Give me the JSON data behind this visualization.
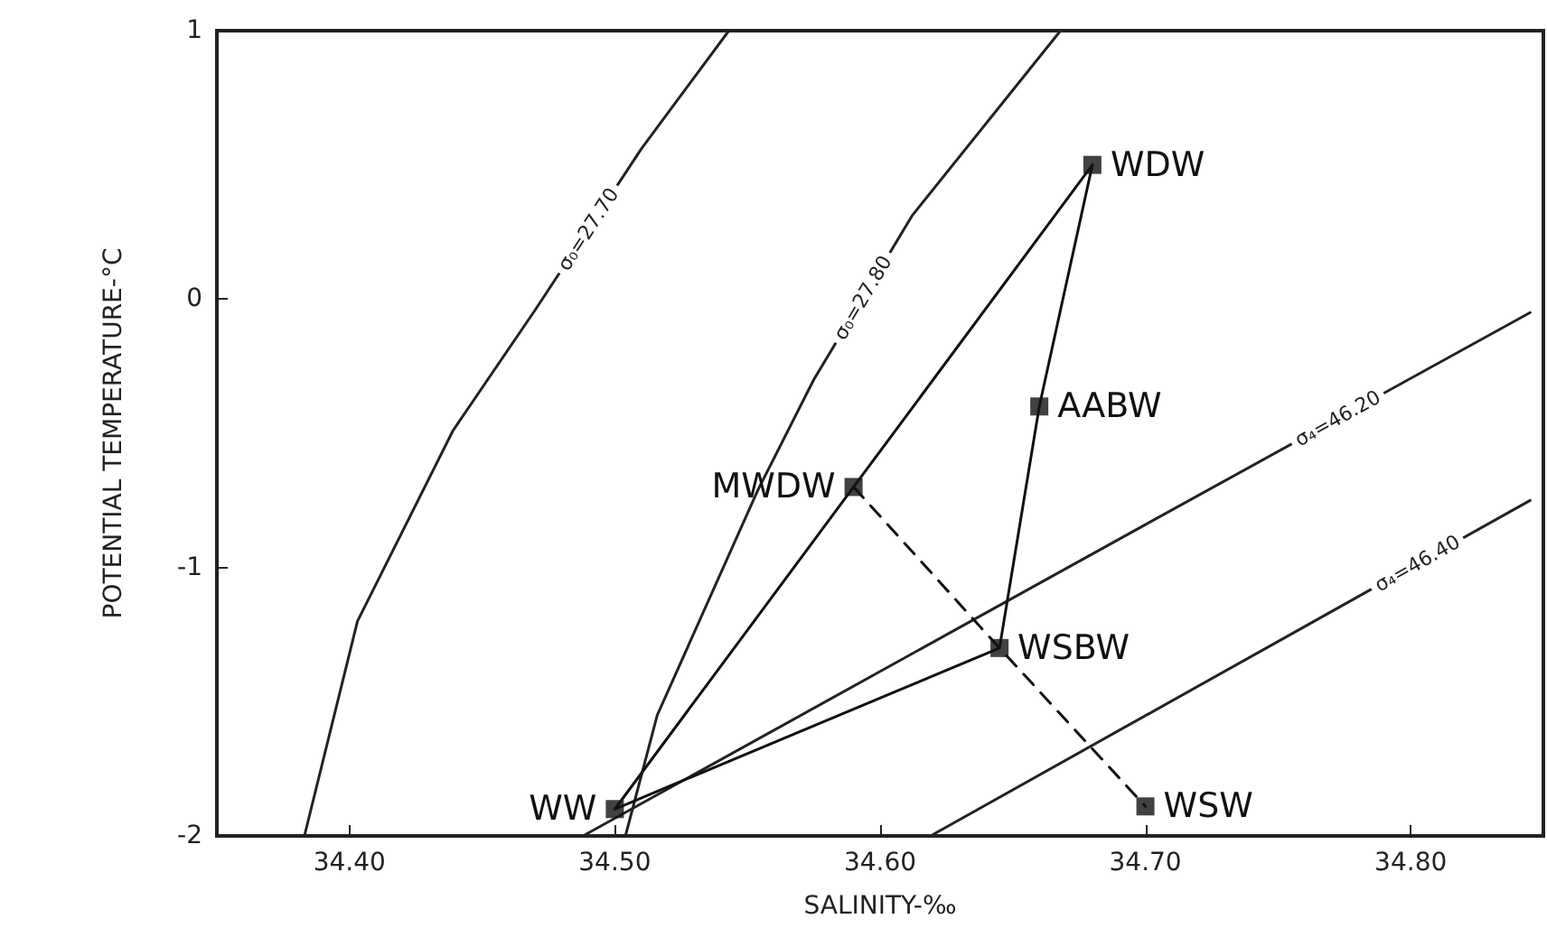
{
  "chart_data": {
    "type": "scatter",
    "xlabel": "SALINITY-‰",
    "ylabel": "POTENTIAL TEMPERATURE-°C",
    "xlim": [
      34.35,
      34.85
    ],
    "ylim": [
      -2,
      1
    ],
    "xticks": [
      {
        "value": 34.4,
        "label": "34.40"
      },
      {
        "value": 34.5,
        "label": "34.50"
      },
      {
        "value": 34.6,
        "label": "34.60"
      },
      {
        "value": 34.7,
        "label": "34.70"
      },
      {
        "value": 34.8,
        "label": "34.80"
      }
    ],
    "yticks": [
      -2,
      -1,
      0,
      1
    ],
    "grid": false,
    "legend": false,
    "series": [
      {
        "type": "line",
        "name": "σ₀=27.70",
        "color": "#222222",
        "marker": "none",
        "x": [
          34.383,
          34.403,
          34.439,
          34.47,
          34.51,
          34.543
        ],
        "values": [
          -2,
          -1.2,
          -0.49,
          -0.04,
          0.56,
          1.0
        ]
      },
      {
        "type": "line",
        "name": "σ₀=27.80",
        "color": "#222222",
        "marker": "none",
        "x": [
          34.504,
          34.516,
          34.554,
          34.575,
          34.612,
          34.668
        ],
        "values": [
          -2,
          -1.55,
          -0.71,
          -0.3,
          0.31,
          1.0
        ]
      },
      {
        "type": "line",
        "name": "σ₄=46.20",
        "color": "#222222",
        "marker": "none",
        "x": [
          34.488,
          34.7,
          34.845
        ],
        "values": [
          -2,
          -0.84,
          -0.05
        ]
      },
      {
        "type": "line",
        "name": "σ₄=46.40",
        "color": "#222222",
        "marker": "none",
        "x": [
          34.619,
          34.76,
          34.845
        ],
        "values": [
          -2,
          -1.22,
          -0.75
        ]
      },
      {
        "type": "line",
        "color": "#111111",
        "marker": "none",
        "line_style": "solid",
        "x": [
          34.5,
          34.59,
          34.68
        ],
        "values": [
          -1.9,
          -0.7,
          0.5
        ]
      },
      {
        "type": "line",
        "color": "#111111",
        "marker": "none",
        "line_style": "solid",
        "x": [
          34.68,
          34.66,
          34.645,
          34.5
        ],
        "values": [
          0.5,
          -0.4,
          -1.3,
          -1.9
        ]
      },
      {
        "type": "line",
        "color": "#111111",
        "marker": "none",
        "line_style": "dashed",
        "x": [
          34.59,
          34.645,
          34.7
        ],
        "values": [
          -0.7,
          -1.3,
          -1.89
        ]
      },
      {
        "color": "#111111",
        "marker": "square",
        "x": [
          34.68,
          34.66,
          34.59,
          34.645,
          34.7,
          34.5
        ],
        "values": [
          0.5,
          -0.4,
          -0.7,
          -1.3,
          -1.89,
          -1.9
        ]
      }
    ],
    "annotations": [
      {
        "text": "WDW",
        "x": 34.68,
        "y": 0.5
      },
      {
        "text": "AABW",
        "x": 34.66,
        "y": -0.4
      },
      {
        "text": "MWDW",
        "x": 34.59,
        "y": -0.7
      },
      {
        "text": "WSBW",
        "x": 34.645,
        "y": -1.3
      },
      {
        "text": "WSW",
        "x": 34.7,
        "y": -1.89
      },
      {
        "text": "WW",
        "x": 34.5,
        "y": -1.9
      }
    ]
  }
}
